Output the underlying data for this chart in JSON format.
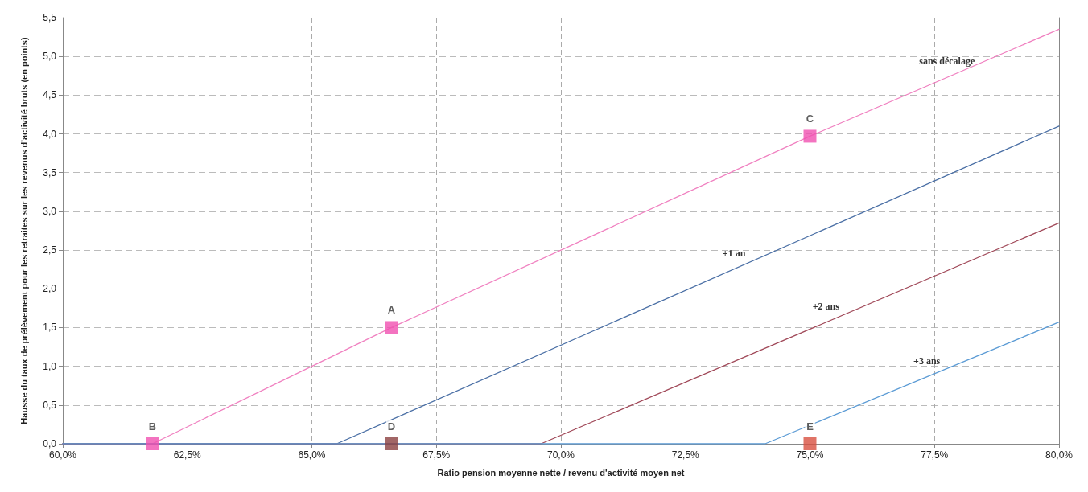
{
  "chart_data": {
    "type": "line",
    "xlabel": "Ratio pension moyenne nette / revenu d'activité moyen net",
    "ylabel": "Hausse du taux de prélèvement pour les retraites sur les revenus d'activité bruts (en points)",
    "xlim": [
      60,
      80
    ],
    "xticks": [
      {
        "value": 60,
        "label": "60,0%"
      },
      {
        "value": 62.5,
        "label": "62,5%"
      },
      {
        "value": 65,
        "label": "65,0%"
      },
      {
        "value": 67.5,
        "label": "67,5%"
      },
      {
        "value": 70,
        "label": "70,0%"
      },
      {
        "value": 72.5,
        "label": "72,5%"
      },
      {
        "value": 75,
        "label": "75,0%"
      },
      {
        "value": 77.5,
        "label": "77,5%"
      },
      {
        "value": 80,
        "label": "80,0%"
      }
    ],
    "ylim": [
      0,
      5.5
    ],
    "yticks": [
      {
        "value": 0,
        "label": "0,0"
      },
      {
        "value": 0.5,
        "label": "0,5"
      },
      {
        "value": 1,
        "label": "1,0"
      },
      {
        "value": 1.5,
        "label": "1,5"
      },
      {
        "value": 2,
        "label": "2,0"
      },
      {
        "value": 2.5,
        "label": "2,5"
      },
      {
        "value": 3,
        "label": "3,0"
      },
      {
        "value": 3.5,
        "label": "3,5"
      },
      {
        "value": 4,
        "label": "4,0"
      },
      {
        "value": 4.5,
        "label": "4,5"
      },
      {
        "value": 5,
        "label": "5,0"
      },
      {
        "value": 5.5,
        "label": "5,5"
      }
    ],
    "grid": true,
    "legend": false,
    "marker": "none",
    "line_style": "solid",
    "series": [
      {
        "name": "sans décalage",
        "color": "#f080c0",
        "x": [
          60,
          61.8,
          65,
          66.6,
          75,
          80
        ],
        "values": [
          0,
          0,
          1.0,
          1.5,
          3.97,
          5.35
        ]
      },
      {
        "name": "+1 an",
        "color": "#4a6fa5",
        "x": [
          60,
          65.5,
          80
        ],
        "values": [
          0,
          0,
          4.1
        ]
      },
      {
        "name": "+2 ans",
        "color": "#a04858",
        "x": [
          60,
          69.6,
          80
        ],
        "values": [
          0,
          0,
          2.85
        ]
      },
      {
        "name": "+3 ans",
        "color": "#5b9bd5",
        "x": [
          60,
          74.1,
          80
        ],
        "values": [
          0,
          0,
          1.57
        ]
      },
      {
        "type": "scatter",
        "marker": "square",
        "color": "#f050b0",
        "x": [
          61.8,
          66.6,
          75
        ],
        "values": [
          0,
          1.5,
          3.97
        ]
      },
      {
        "type": "scatter",
        "marker": "square",
        "color": "#8b4040",
        "x": [
          66.6
        ],
        "values": [
          0
        ]
      },
      {
        "type": "scatter",
        "marker": "square",
        "color": "#d85040",
        "x": [
          75
        ],
        "values": [
          0
        ]
      }
    ],
    "annotations": [
      {
        "text": "A",
        "x": 66.6,
        "y": 1.5
      },
      {
        "text": "B",
        "x": 61.8,
        "y": 0
      },
      {
        "text": "C",
        "x": 75,
        "y": 3.97
      },
      {
        "text": "D",
        "x": 66.6,
        "y": 0
      },
      {
        "text": "E",
        "x": 75,
        "y": 0
      }
    ]
  }
}
